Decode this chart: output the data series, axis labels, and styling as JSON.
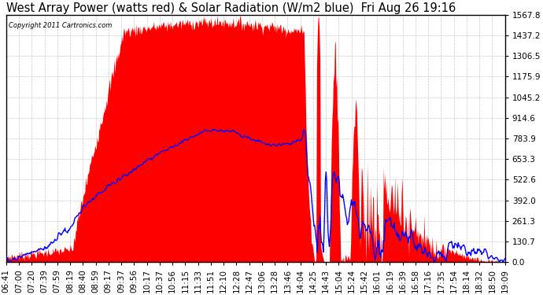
{
  "title": "West Array Power (watts red) & Solar Radiation (W/m2 blue)  Fri Aug 26 19:16",
  "copyright": "Copyright 2011 Cartronics.com",
  "yticks": [
    0.0,
    130.7,
    261.3,
    392.0,
    522.6,
    653.3,
    783.9,
    914.6,
    1045.2,
    1175.9,
    1306.5,
    1437.2,
    1567.8
  ],
  "ymax": 1567.8,
  "ymin": 0.0,
  "background_color": "#ffffff",
  "grid_color": "#bbbbbb",
  "red_fill_color": "#ff0000",
  "blue_line_color": "#0000ff",
  "title_fontsize": 10.5,
  "tick_fontsize": 7.5,
  "x_labels": [
    "06:41",
    "07:00",
    "07:20",
    "07:39",
    "07:59",
    "08:19",
    "08:40",
    "08:59",
    "09:17",
    "09:37",
    "09:56",
    "10:17",
    "10:37",
    "10:56",
    "11:15",
    "11:33",
    "11:51",
    "12:10",
    "12:28",
    "12:47",
    "13:06",
    "13:28",
    "13:46",
    "14:04",
    "14:25",
    "14:43",
    "15:04",
    "15:24",
    "15:42",
    "16:01",
    "16:19",
    "16:39",
    "16:58",
    "17:16",
    "17:35",
    "17:54",
    "18:14",
    "18:32",
    "18:50",
    "19:09"
  ]
}
